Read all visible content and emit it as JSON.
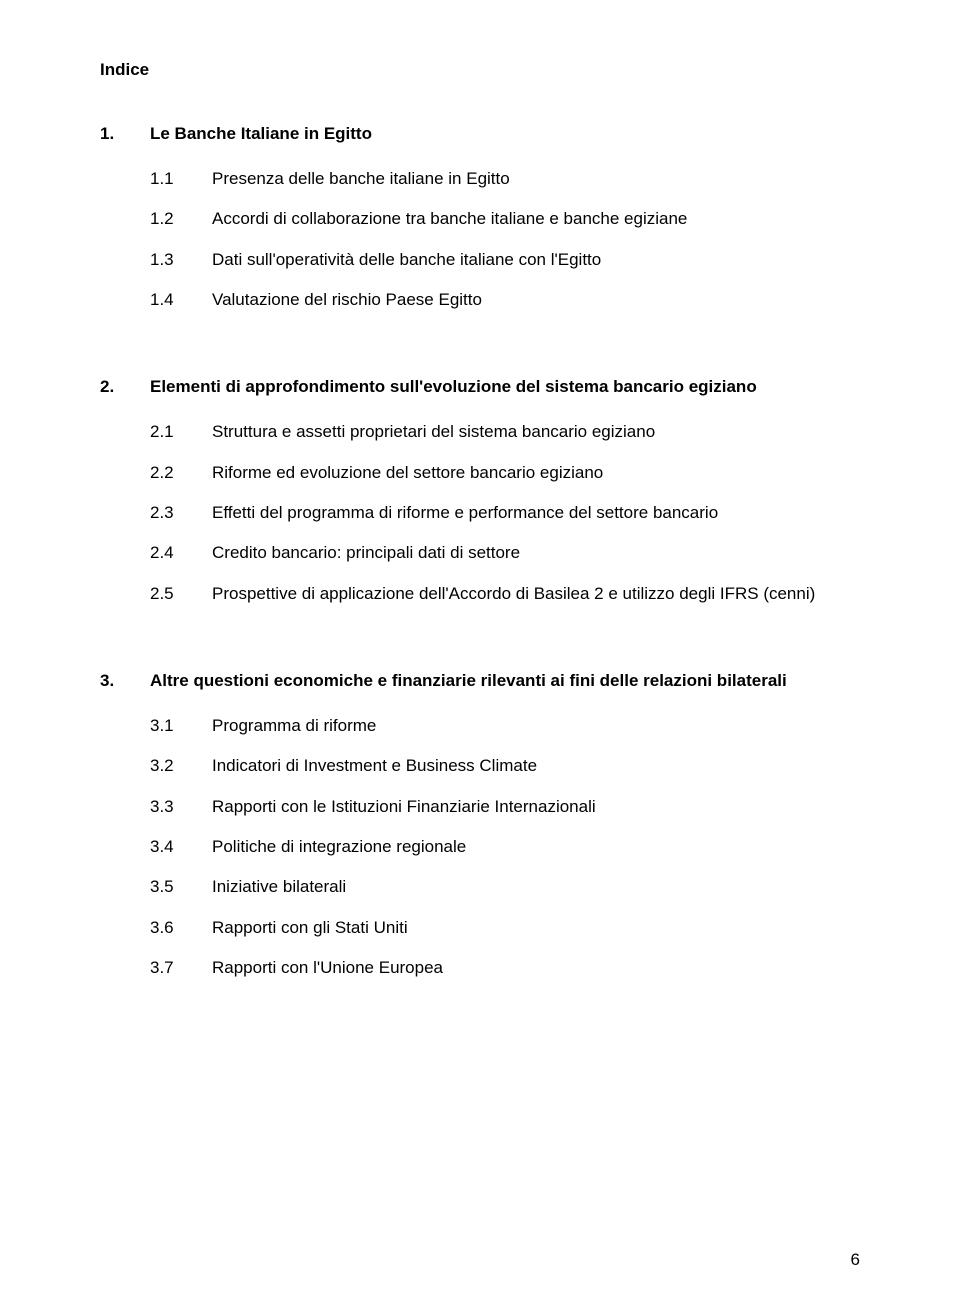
{
  "title": "Indice",
  "page_number": "6",
  "sections": [
    {
      "num": "1.",
      "text": "Le Banche Italiane in Egitto",
      "subs": [
        {
          "num": "1.1",
          "text": "Presenza delle banche italiane in Egitto"
        },
        {
          "num": "1.2",
          "text": "Accordi di collaborazione tra banche italiane e banche egiziane"
        },
        {
          "num": "1.3",
          "text": "Dati sull'operatività delle banche italiane con l'Egitto"
        },
        {
          "num": "1.4",
          "text": "Valutazione del rischio Paese Egitto"
        }
      ]
    },
    {
      "num": "2.",
      "text": "Elementi di approfondimento sull'evoluzione del sistema bancario egiziano",
      "subs": [
        {
          "num": "2.1",
          "text": "Struttura e assetti proprietari del sistema bancario egiziano"
        },
        {
          "num": "2.2",
          "text": "Riforme ed evoluzione del settore bancario egiziano"
        },
        {
          "num": "2.3",
          "text": "Effetti del programma di riforme e performance del settore bancario"
        },
        {
          "num": "2.4",
          "text": "Credito bancario: principali dati di settore"
        },
        {
          "num": "2.5",
          "text": "Prospettive di applicazione dell'Accordo di Basilea 2 e utilizzo degli IFRS (cenni)"
        }
      ]
    },
    {
      "num": "3.",
      "text": "Altre questioni economiche e finanziarie rilevanti ai fini delle relazioni bilaterali",
      "subs": [
        {
          "num": "3.1",
          "text": "Programma di riforme"
        },
        {
          "num": "3.2",
          "text": "Indicatori di Investment e Business Climate"
        },
        {
          "num": "3.3",
          "text": "Rapporti con le Istituzioni Finanziarie Internazionali"
        },
        {
          "num": "3.4",
          "text": "Politiche di integrazione regionale"
        },
        {
          "num": "3.5",
          "text": "Iniziative bilaterali"
        },
        {
          "num": "3.6",
          "text": "Rapporti con gli Stati Uniti"
        },
        {
          "num": "3.7",
          "text": "Rapporti con l'Unione Europea"
        }
      ]
    }
  ]
}
